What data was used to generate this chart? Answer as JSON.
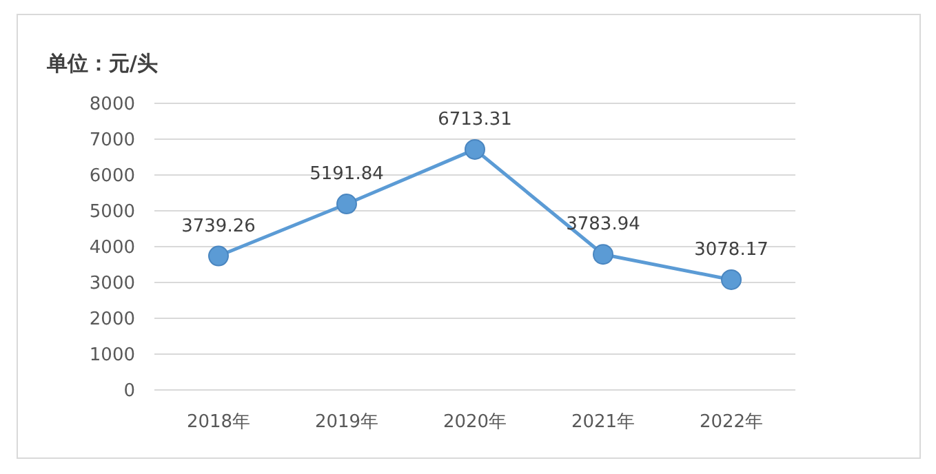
{
  "chart_data": {
    "type": "line",
    "title": "单位：元/头",
    "categories": [
      "2018年",
      "2019年",
      "2020年",
      "2021年",
      "2022年"
    ],
    "series": [
      {
        "color": "#5b9bd5",
        "values": [
          3739.26,
          5191.84,
          6713.31,
          3783.94,
          3078.17
        ]
      }
    ],
    "ylim": [
      0,
      8000
    ],
    "yticks": [
      0,
      1000,
      2000,
      3000,
      4000,
      5000,
      6000,
      7000,
      8000
    ],
    "grid": "y",
    "marker": "circle",
    "line_style": "solid",
    "data_labels": true
  }
}
